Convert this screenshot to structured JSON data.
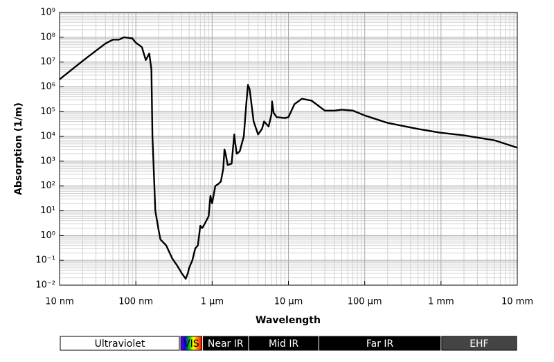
{
  "chart_data": {
    "type": "line",
    "xlabel": "Wavelength",
    "ylabel": "Absorption (1/m)",
    "xscale": "log",
    "yscale": "log",
    "grid": true,
    "minor_grid": true,
    "color": "#000000",
    "xlim": [
      10,
      10000000
    ],
    "ylim": [
      0.01,
      1000000000
    ],
    "xticks": [
      {
        "value": 10,
        "label": "10 nm"
      },
      {
        "value": 100,
        "label": "100 nm"
      },
      {
        "value": 1000,
        "label": "1 µm"
      },
      {
        "value": 10000,
        "label": "10 µm"
      },
      {
        "value": 100000,
        "label": "100 µm"
      },
      {
        "value": 1000000,
        "label": "1 mm"
      },
      {
        "value": 10000000,
        "label": "10 mm"
      }
    ],
    "yticks": [
      {
        "value": 0.01,
        "label": "10⁻²"
      },
      {
        "value": 0.1,
        "label": "10⁻¹"
      },
      {
        "value": 1,
        "label": "10⁰"
      },
      {
        "value": 10,
        "label": "10¹"
      },
      {
        "value": 100,
        "label": "10²"
      },
      {
        "value": 1000,
        "label": "10³"
      },
      {
        "value": 10000,
        "label": "10⁴"
      },
      {
        "value": 100000,
        "label": "10⁵"
      },
      {
        "value": 1000000,
        "label": "10⁶"
      },
      {
        "value": 10000000,
        "label": "10⁷"
      },
      {
        "value": 100000000,
        "label": "10⁸"
      },
      {
        "value": 1000000000,
        "label": "10⁹"
      }
    ],
    "x": [
      10,
      20,
      40,
      50,
      60,
      70,
      90,
      100,
      120,
      135,
      150,
      160,
      165,
      170,
      180,
      200,
      210,
      250,
      300,
      350,
      400,
      450,
      480,
      500,
      550,
      600,
      650,
      700,
      740,
      800,
      900,
      950,
      1000,
      1100,
      1200,
      1300,
      1400,
      1450,
      1500,
      1600,
      1800,
      1950,
      2000,
      2100,
      2300,
      2600,
      2800,
      2950,
      3100,
      3500,
      4000,
      4500,
      4800,
      5500,
      6000,
      6100,
      6400,
      7000,
      9000,
      10000,
      12000,
      15000,
      20000,
      30000,
      40000,
      50000,
      70000,
      100000,
      200000,
      500000,
      1000000,
      2000000,
      5000000,
      10000000
    ],
    "values": [
      2000000,
      11000000,
      56000000,
      80000000,
      80000000,
      100000000,
      90000000,
      60000000,
      40000000,
      12000000,
      22000000,
      5000000,
      10000,
      1000,
      10,
      1.5,
      0.7,
      0.4,
      0.12,
      0.06,
      0.03,
      0.018,
      0.03,
      0.05,
      0.1,
      0.3,
      0.4,
      2.5,
      2,
      3,
      6,
      40,
      20,
      100,
      120,
      150,
      500,
      3000,
      2000,
      700,
      800,
      12000,
      6000,
      2000,
      2500,
      10000,
      200000,
      1200000,
      800000,
      40000,
      12000,
      20000,
      40000,
      25000,
      80000,
      260000,
      90000,
      60000,
      55000,
      60000,
      200000,
      330000,
      280000,
      110000,
      110000,
      120000,
      110000,
      70000,
      35000,
      20000,
      14000,
      11000,
      7000,
      3500
    ],
    "bands": [
      {
        "label": "Ultraviolet",
        "start": 10,
        "end": 380,
        "color": "#ffffff"
      },
      {
        "label": "VIS",
        "start": 380,
        "end": 750,
        "color": "rainbow"
      },
      {
        "label": "Near IR",
        "start": 750,
        "end": 3000,
        "color": "#000000"
      },
      {
        "label": "Mid IR",
        "start": 3000,
        "end": 25000,
        "color": "#000000"
      },
      {
        "label": "Far IR",
        "start": 25000,
        "end": 1000000,
        "color": "#000000"
      },
      {
        "label": "EHF",
        "start": 1000000,
        "end": 10000000,
        "color": "#444444"
      }
    ]
  }
}
